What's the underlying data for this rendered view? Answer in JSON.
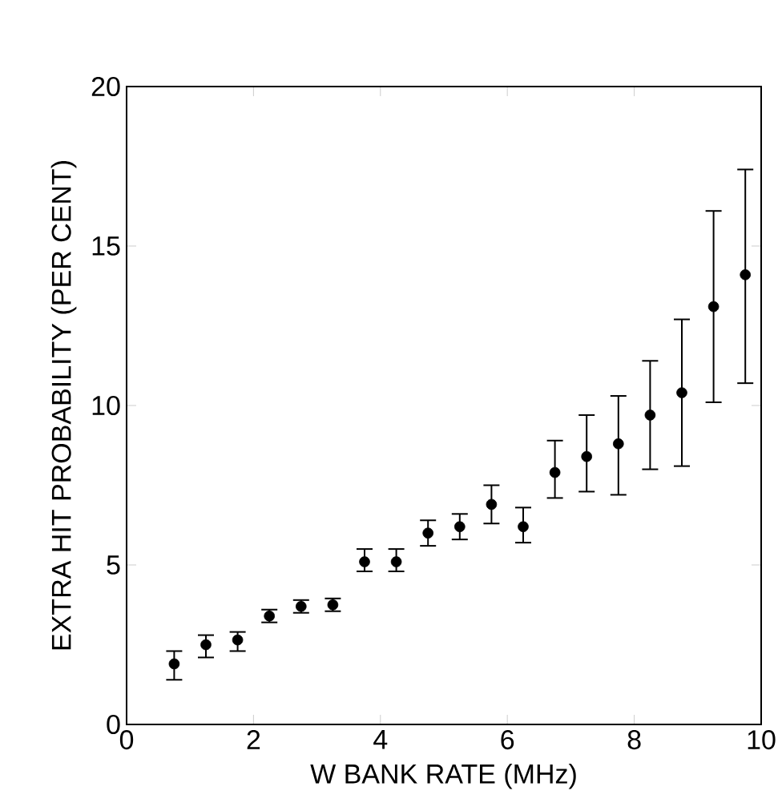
{
  "chart_data": {
    "type": "scatter",
    "xlabel": "W BANK RATE (MHz)",
    "ylabel": "EXTRA HIT PROBABILITY (PER CENT)",
    "x": [
      0.75,
      1.25,
      1.75,
      2.25,
      2.75,
      3.25,
      3.75,
      4.25,
      4.75,
      5.25,
      5.75,
      6.25,
      6.75,
      7.25,
      7.75,
      8.25,
      8.75,
      9.25,
      9.75
    ],
    "values": [
      1.9,
      2.5,
      2.65,
      3.4,
      3.7,
      3.75,
      5.1,
      5.1,
      6.0,
      6.2,
      6.9,
      6.2,
      7.9,
      8.4,
      8.8,
      9.7,
      10.4,
      13.1,
      14.1
    ],
    "errors": [
      [
        1.4,
        2.3
      ],
      [
        2.1,
        2.8
      ],
      [
        2.3,
        2.9
      ],
      [
        3.2,
        3.6
      ],
      [
        3.5,
        3.9
      ],
      [
        3.55,
        3.95
      ],
      [
        4.8,
        5.5
      ],
      [
        4.8,
        5.5
      ],
      [
        5.6,
        6.4
      ],
      [
        5.8,
        6.6
      ],
      [
        6.3,
        7.5
      ],
      [
        5.7,
        6.8
      ],
      [
        7.1,
        8.9
      ],
      [
        7.3,
        9.7
      ],
      [
        7.2,
        10.3
      ],
      [
        8.0,
        11.4
      ],
      [
        8.1,
        12.7
      ],
      [
        10.1,
        16.1
      ],
      [
        10.7,
        17.4
      ]
    ],
    "color": "#000000",
    "marker": "circle",
    "grid": false,
    "xlim": [
      0,
      10
    ],
    "ylim": [
      0,
      20
    ],
    "xticks": [
      0,
      2,
      4,
      6,
      8,
      10
    ],
    "yticks": [
      0,
      5,
      10,
      15,
      20
    ]
  }
}
